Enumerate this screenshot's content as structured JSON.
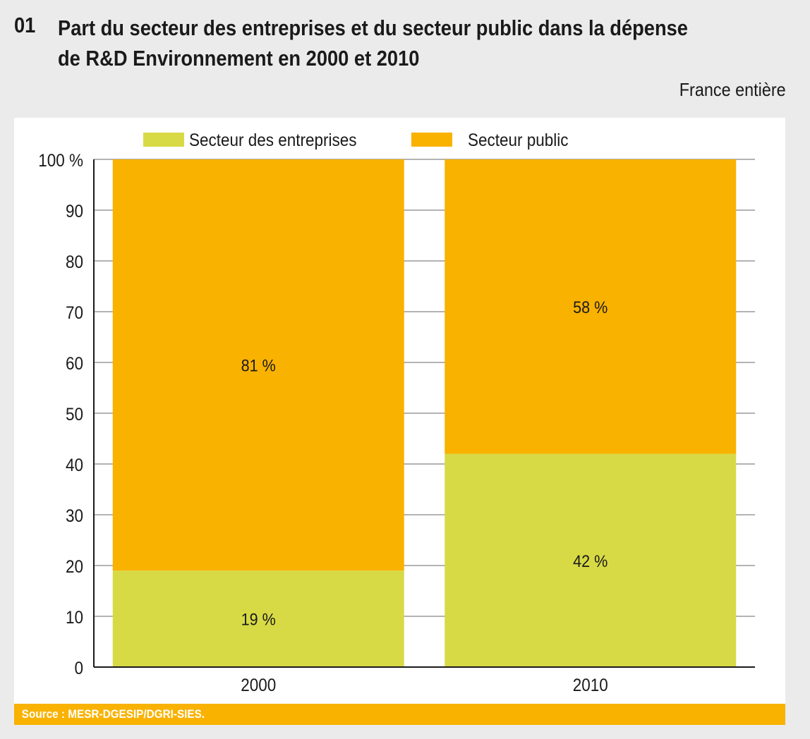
{
  "header": {
    "number": "01",
    "title_line1": "Part du secteur des entreprises et du secteur public dans la dépense",
    "title_line2": "de R&D Environnement en 2000 et 2010",
    "subtitle": "France entière"
  },
  "footer": {
    "source": "Source : MESR-DGESIP/DGRI-SIES."
  },
  "colors": {
    "entreprises": "#d8da45",
    "public": "#f9b200",
    "background": "#ebebeb",
    "panel": "#ffffff"
  },
  "chart_data": {
    "type": "bar",
    "stacked": true,
    "title": "Part du secteur des entreprises et du secteur public dans la dépense de R&D Environnement en 2000 et 2010",
    "xlabel": "",
    "ylabel": "",
    "ylim": [
      0,
      100
    ],
    "yticks": [
      0,
      10,
      20,
      30,
      40,
      50,
      60,
      70,
      80,
      90,
      100
    ],
    "ytick_labels": [
      "0",
      "10",
      "20",
      "30",
      "40",
      "50",
      "60",
      "70",
      "80",
      "90",
      "100 %"
    ],
    "grid": true,
    "legend_position": "top",
    "categories": [
      "2000",
      "2010"
    ],
    "series": [
      {
        "name": "Secteur des entreprises",
        "color": "#d8da45",
        "values": [
          19,
          42
        ],
        "labels": [
          "19 %",
          "42 %"
        ]
      },
      {
        "name": "Secteur public",
        "color": "#f9b200",
        "values": [
          81,
          58
        ],
        "labels": [
          "81 %",
          "58 %"
        ]
      }
    ]
  }
}
